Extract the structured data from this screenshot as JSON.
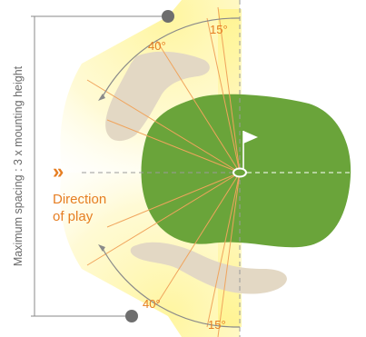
{
  "diagram": {
    "spacing_label": "Maximum spacing : 3 x mounting height",
    "direction_arrows": "»",
    "direction_label_line1": "Direction",
    "direction_label_line2": "of play",
    "angle_top_outer": "40°",
    "angle_top_inner": "15°",
    "angle_bottom_outer": "40°",
    "angle_bottom_inner": "15°"
  },
  "colors": {
    "green": "#6aa43a",
    "bunker": "#e3d8c4",
    "light_glow": "#fff6a8",
    "beam_line": "#f0a45c",
    "accent_orange": "#e67e22",
    "guide_grey": "#8a8a8a",
    "pole_dot": "#6e6e6e"
  }
}
